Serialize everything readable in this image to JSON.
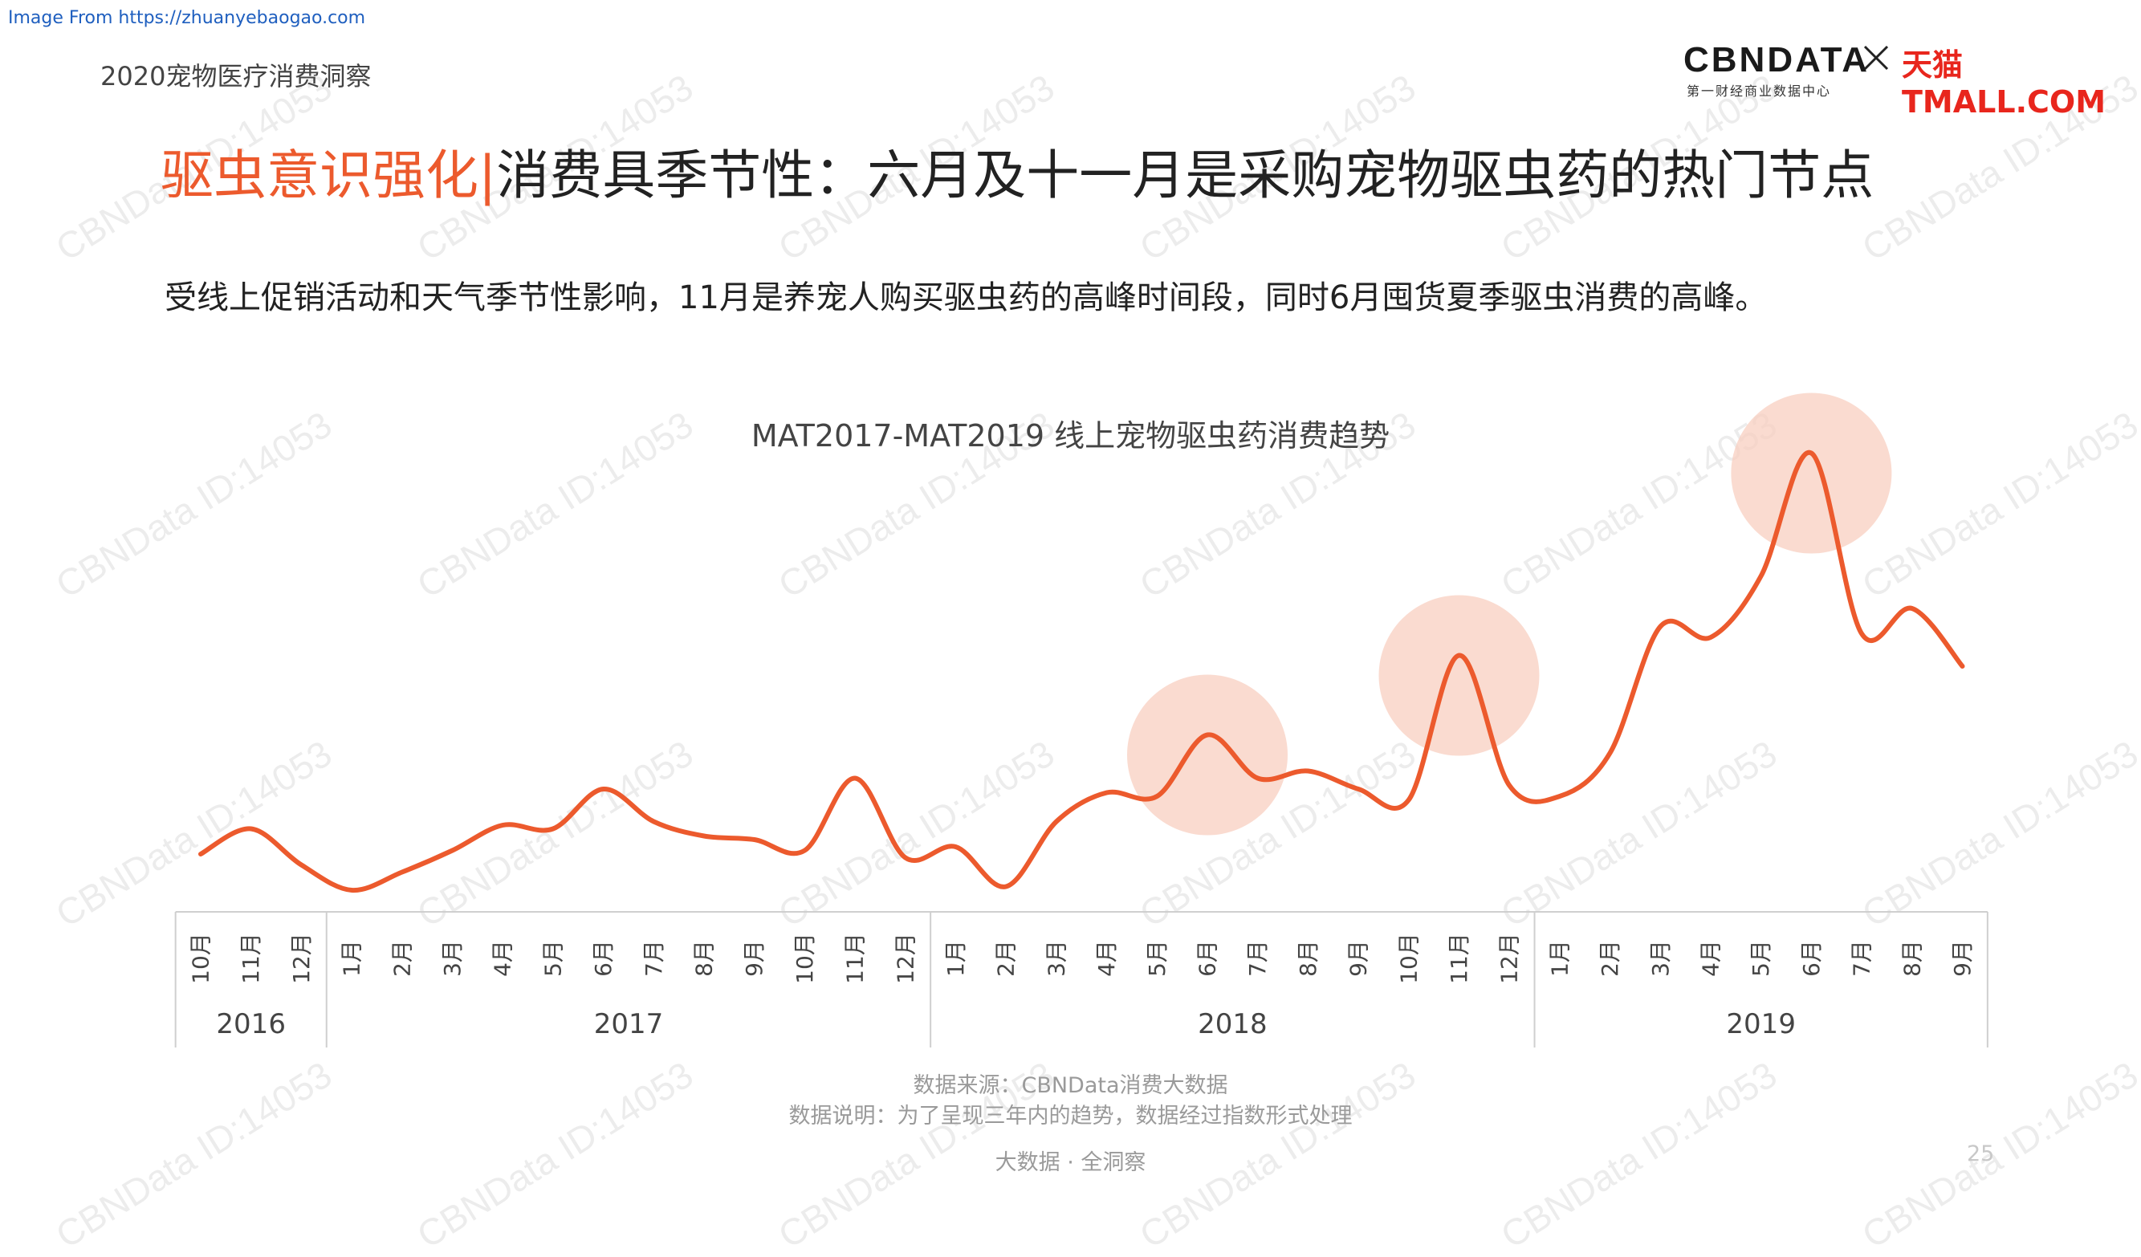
{
  "header": {
    "source_link": "Image From https://zhuanyebaogao.com",
    "report_title": "2020宠物医疗消费洞察",
    "brand_cbn": "CBNDATA",
    "brand_cbn_sub": "第一财经商业数据中心",
    "brand_tmall": "天猫TMALL.COM"
  },
  "headline": {
    "accent": "驱虫意识强化",
    "separator": "|",
    "rest": "消费具季节性：六月及十一月是采购宠物驱虫药的热门节点"
  },
  "subtitle": "受线上促销活动和天气季节性影响，11月是养宠人购买驱虫药的高峰时间段，同时6月囤货夏季驱虫消费的高峰。",
  "chart_data": {
    "type": "line",
    "title": "MAT2017-MAT2019 线上宠物驱虫药消费趋势",
    "color": "#ec5a2d",
    "highlight_color": "#f8cfc0",
    "y_axis_shown": false,
    "grid": false,
    "years": [
      {
        "label": "2016",
        "start": 0,
        "end": 2
      },
      {
        "label": "2017",
        "start": 3,
        "end": 14
      },
      {
        "label": "2018",
        "start": 15,
        "end": 26
      },
      {
        "label": "2019",
        "start": 27,
        "end": 35
      }
    ],
    "categories": [
      "10月",
      "11月",
      "12月",
      "1月",
      "2月",
      "3月",
      "4月",
      "5月",
      "6月",
      "7月",
      "8月",
      "9月",
      "10月",
      "11月",
      "12月",
      "1月",
      "2月",
      "3月",
      "4月",
      "5月",
      "6月",
      "7月",
      "8月",
      "9月",
      "10月",
      "11月",
      "12月",
      "1月",
      "2月",
      "3月",
      "4月",
      "5月",
      "6月",
      "7月",
      "8月",
      "9月"
    ],
    "values": [
      12,
      19,
      9,
      2,
      7,
      13,
      20,
      19,
      30,
      21,
      17,
      16,
      13,
      33,
      11,
      14,
      3,
      21,
      29,
      28,
      45,
      33,
      35,
      30,
      27,
      67,
      31,
      28,
      40,
      75,
      72,
      89,
      123,
      73,
      80,
      64
    ],
    "highlighted_indices": [
      20,
      25,
      32
    ]
  },
  "footer": {
    "source": "数据来源：CBNData消费大数据",
    "note": "数据说明：为了呈现三年内的趋势，数据经过指数形式处理",
    "tagline": "大数据 · 全洞察",
    "page_number": "25"
  },
  "watermark": "CBNData ID:14053"
}
